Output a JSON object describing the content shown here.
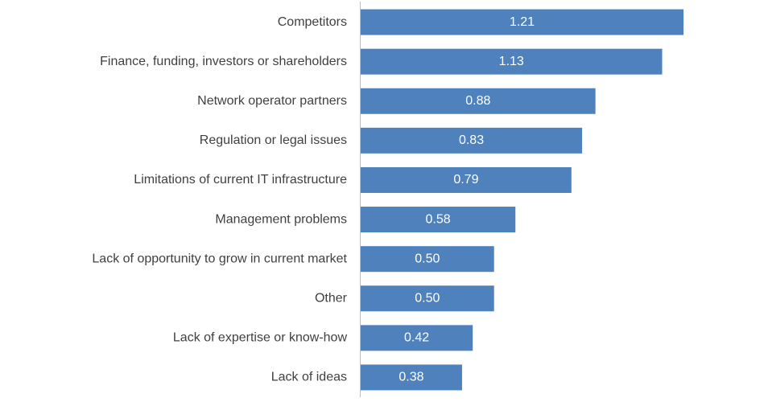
{
  "chart_data": {
    "type": "bar",
    "orientation": "horizontal",
    "categories": [
      "Competitors",
      "Finance, funding, investors or shareholders",
      "Network operator partners",
      "Regulation or legal issues",
      "Limitations of current IT infrastructure",
      "Management problems",
      "Lack of opportunity to grow in current market",
      "Other",
      "Lack of expertise or know-how",
      "Lack of ideas"
    ],
    "values": [
      1.21,
      1.13,
      0.88,
      0.83,
      0.79,
      0.58,
      0.5,
      0.5,
      0.42,
      0.38
    ],
    "value_labels": [
      "1.21",
      "1.13",
      "0.88",
      "0.83",
      "0.79",
      "0.58",
      "0.50",
      "0.50",
      "0.42",
      "0.38"
    ],
    "color": "#4f81bd"
  }
}
